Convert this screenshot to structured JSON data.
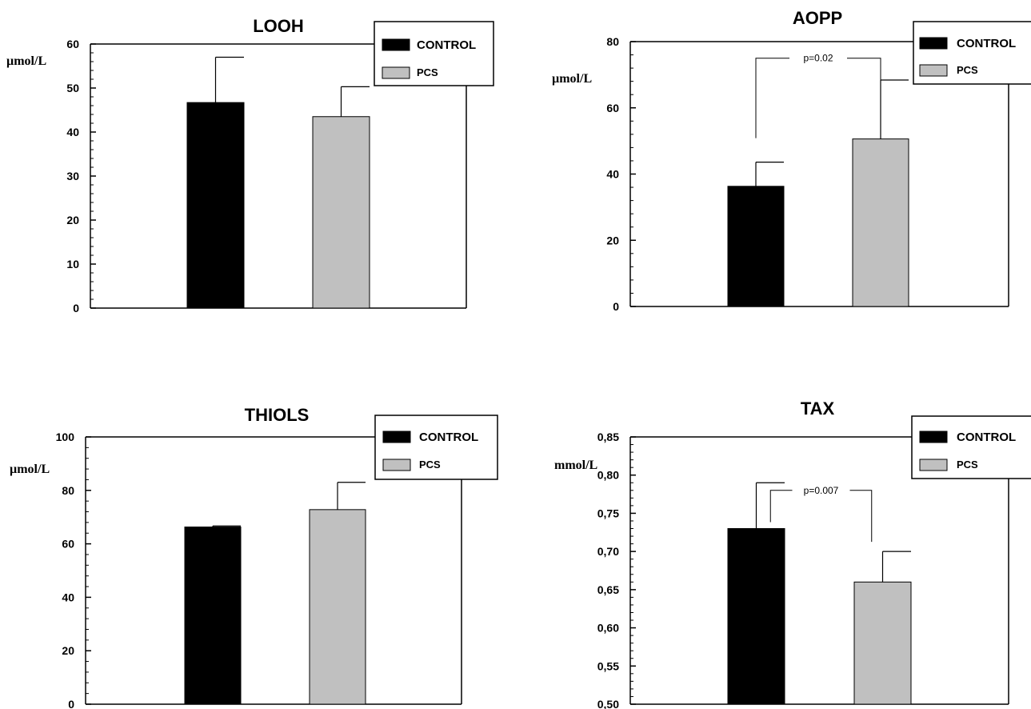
{
  "chart_data": [
    {
      "type": "bar",
      "title": "LOOH",
      "ylabel": "µmol/L",
      "ylim": [
        0,
        60
      ],
      "yticks": [
        "0",
        "10",
        "20",
        "30",
        "40",
        "50",
        "60"
      ],
      "categories": [
        "CONTROL",
        "PCS"
      ],
      "values": [
        46.7,
        43.5
      ],
      "errors": [
        10.3,
        6.8
      ],
      "colors": [
        "#000000",
        "#c0c0c0"
      ],
      "legend": [
        {
          "label": "CONTROL",
          "color": "#000000"
        },
        {
          "label": "PCS",
          "color": "#c0c0c0"
        }
      ],
      "legend_position": "top-right",
      "annotation": null
    },
    {
      "type": "bar",
      "title": "AOPP",
      "ylabel": "µmol/L",
      "ylim": [
        0,
        80
      ],
      "yticks": [
        "0",
        "20",
        "40",
        "60",
        "80"
      ],
      "categories": [
        "CONTROL",
        "PCS"
      ],
      "values": [
        36.3,
        50.6
      ],
      "errors": [
        7.3,
        17.8
      ],
      "colors": [
        "#000000",
        "#c0c0c0"
      ],
      "legend": [
        {
          "label": "CONTROL",
          "color": "#000000"
        },
        {
          "label": "PCS",
          "color": "#c0c0c0"
        }
      ],
      "legend_position": "top-right",
      "annotation": {
        "text": "p=0.02",
        "y": 75
      }
    },
    {
      "type": "bar",
      "title": "THIOLS",
      "ylabel": "µmol/L",
      "ylim": [
        0,
        100
      ],
      "yticks": [
        "0",
        "20",
        "40",
        "60",
        "80",
        "100"
      ],
      "categories": [
        "CONTROL",
        "PCS"
      ],
      "values": [
        66.3,
        72.8
      ],
      "errors": [
        0.4,
        10.2
      ],
      "colors": [
        "#000000",
        "#c0c0c0"
      ],
      "legend": [
        {
          "label": "CONTROL",
          "color": "#000000"
        },
        {
          "label": "PCS",
          "color": "#c0c0c0"
        }
      ],
      "legend_position": "top-right",
      "annotation": null
    },
    {
      "type": "bar",
      "title": "TAX",
      "ylabel": "mmol/L",
      "ylim": [
        0.5,
        0.85
      ],
      "yticks": [
        "0,50",
        "0,55",
        "0,60",
        "0,65",
        "0,70",
        "0,75",
        "0,80",
        "0,85"
      ],
      "categories": [
        "CONTROL",
        "PCS"
      ],
      "values": [
        0.73,
        0.66
      ],
      "errors": [
        0.06,
        0.04
      ],
      "colors": [
        "#000000",
        "#c0c0c0"
      ],
      "legend": [
        {
          "label": "CONTROL",
          "color": "#000000"
        },
        {
          "label": "PCS",
          "color": "#c0c0c0"
        }
      ],
      "legend_position": "top-right",
      "annotation": {
        "text": "p=0.007",
        "y": 0.78
      }
    }
  ]
}
